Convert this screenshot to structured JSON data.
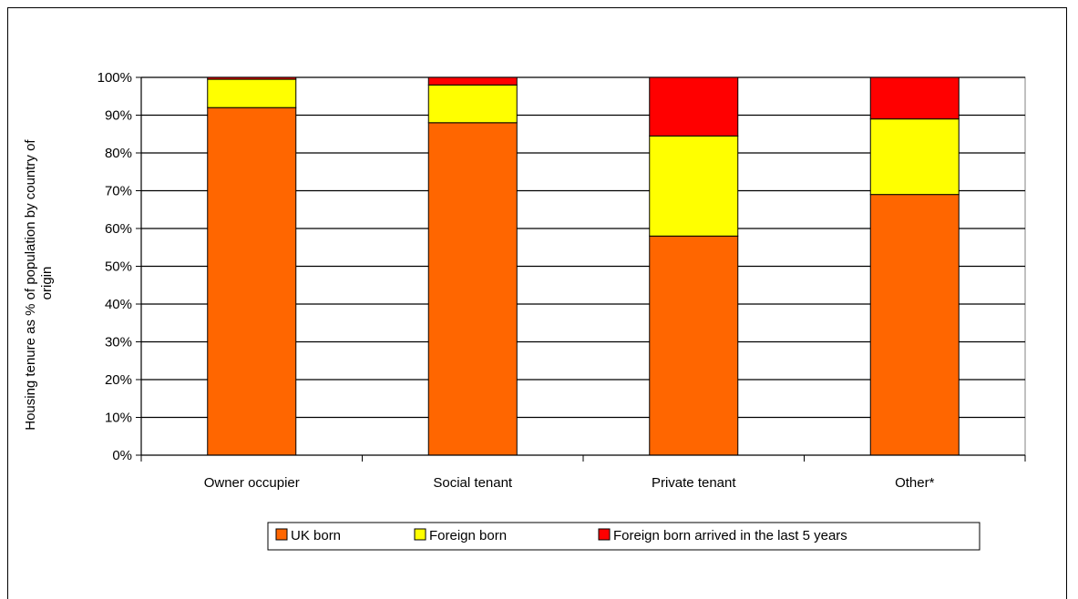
{
  "chart_data": {
    "type": "bar",
    "stacked": true,
    "title": "",
    "xlabel": "",
    "ylabel": "Housing tenure as % of population by country of origin",
    "ylabel_lines": [
      "Housing tenure as % of population by country of",
      "origin"
    ],
    "categories": [
      "Owner occupier",
      "Social tenant",
      "Private tenant",
      "Other*"
    ],
    "series": [
      {
        "name": "UK born",
        "values": [
          92,
          88,
          58,
          69
        ],
        "color": "#ff6600"
      },
      {
        "name": "Foreign born",
        "values": [
          7.5,
          10,
          26.5,
          20
        ],
        "color": "#ffff00"
      },
      {
        "name": "Foreign born arrived in the last 5 years",
        "values": [
          0.5,
          2,
          15.5,
          11
        ],
        "color": "#ff0000"
      }
    ],
    "ylim": [
      0,
      100
    ],
    "y_ticks": [
      "0%",
      "10%",
      "20%",
      "30%",
      "40%",
      "50%",
      "60%",
      "70%",
      "80%",
      "90%",
      "100%"
    ],
    "grid": true,
    "legend_position": "bottom"
  }
}
